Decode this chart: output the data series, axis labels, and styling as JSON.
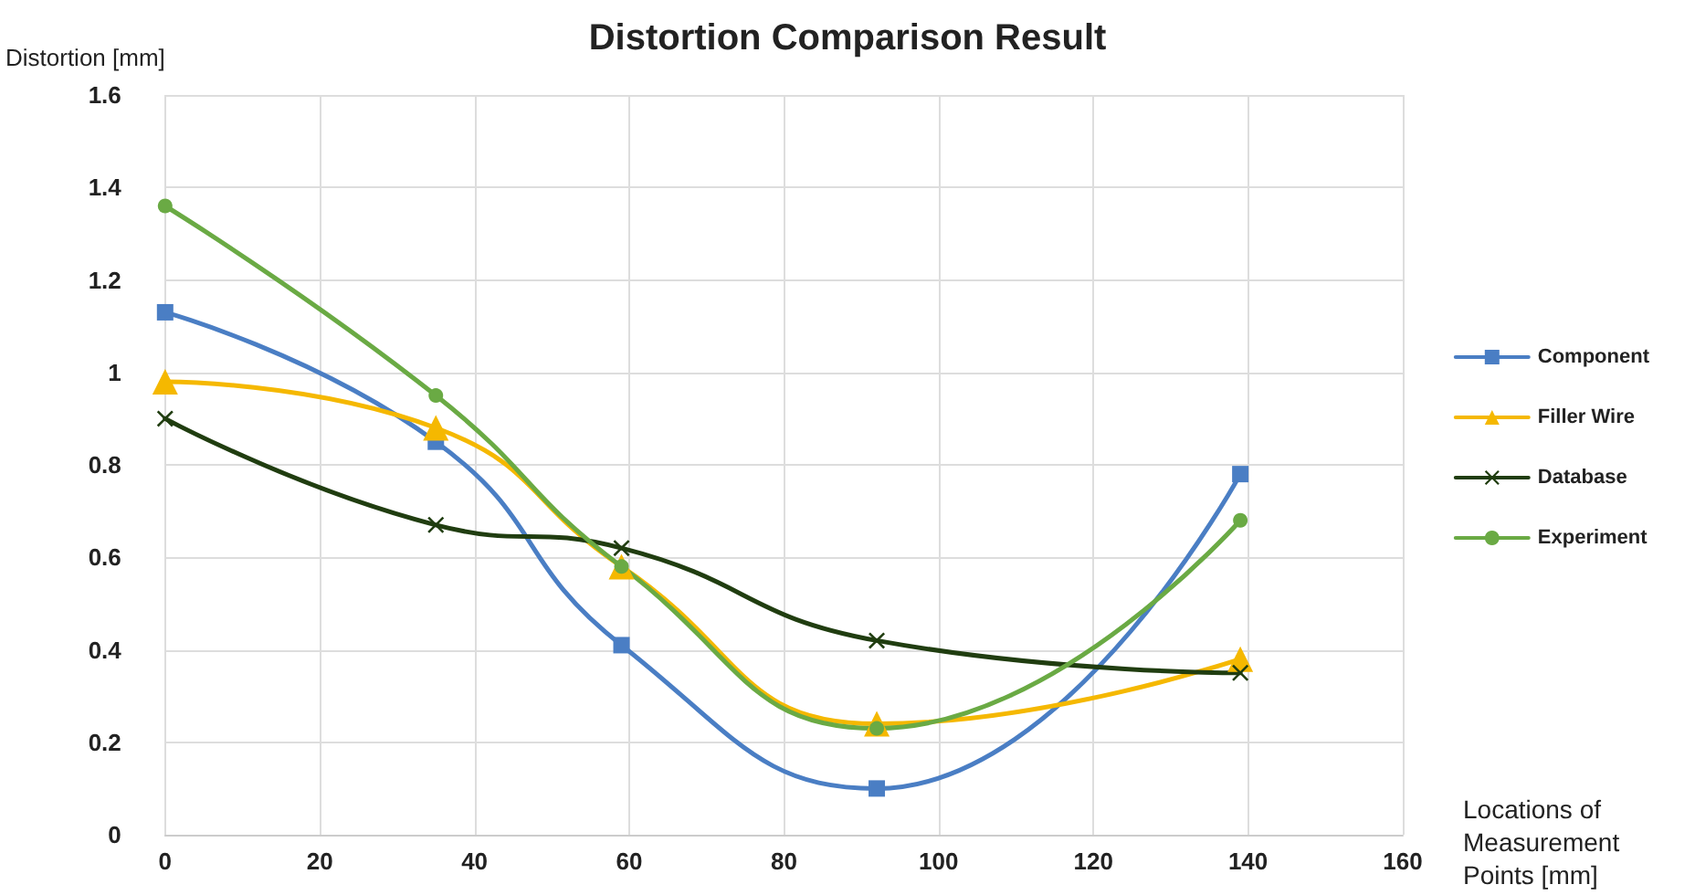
{
  "chart_data": {
    "type": "line",
    "title": "Distortion Comparison Result",
    "xlabel": "Locations of Measurement Points [mm]",
    "ylabel": "Distortion [mm]",
    "x": [
      0,
      35,
      59,
      92,
      139
    ],
    "xlim": [
      0,
      160
    ],
    "xticks": [
      0,
      20,
      40,
      60,
      80,
      100,
      120,
      140,
      160
    ],
    "ylim": [
      0,
      1.6
    ],
    "yticks": [
      0,
      0.2,
      0.4,
      0.6,
      0.8,
      1,
      1.2,
      1.4,
      1.6
    ],
    "grid": true,
    "legend": "right",
    "line_style": "solid",
    "series": [
      {
        "name": "Component",
        "color": "#4a7ec4",
        "marker": "square",
        "values": [
          1.13,
          0.85,
          0.41,
          0.1,
          0.78
        ]
      },
      {
        "name": "Filler Wire",
        "color": "#f5b800",
        "marker": "triangle",
        "values": [
          0.98,
          0.88,
          0.58,
          0.24,
          0.38
        ]
      },
      {
        "name": "Database",
        "color": "#203d10",
        "marker": "cross",
        "values": [
          0.9,
          0.67,
          0.62,
          0.42,
          0.35
        ]
      },
      {
        "name": "Experiment",
        "color": "#6aaa44",
        "marker": "circle",
        "values": [
          1.36,
          0.95,
          0.58,
          0.23,
          0.68
        ]
      }
    ]
  }
}
